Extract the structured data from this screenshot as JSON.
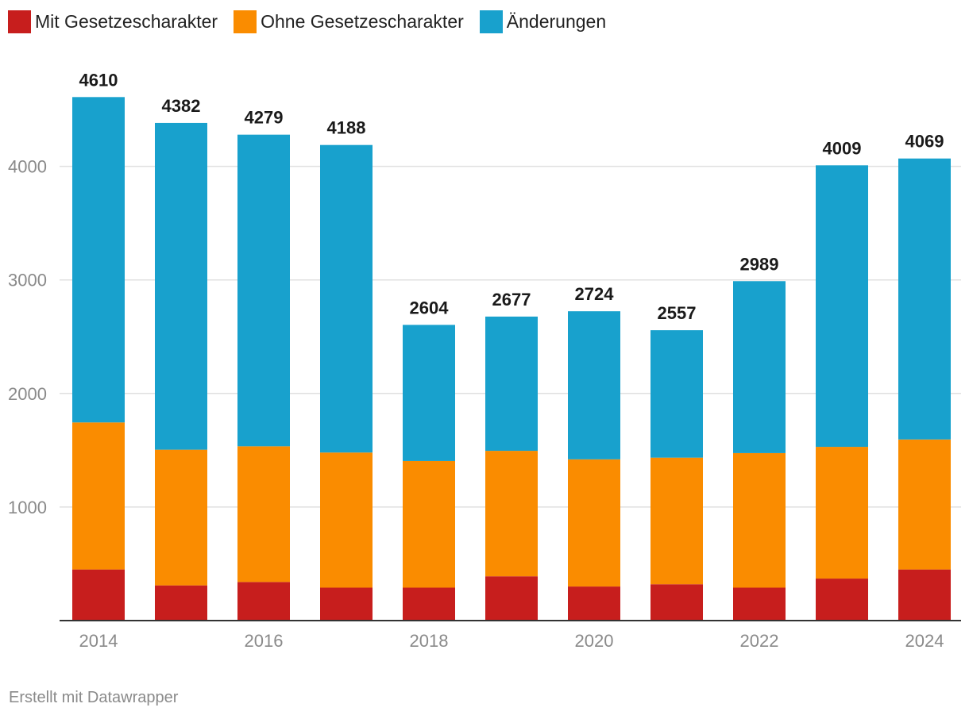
{
  "chart_data": {
    "type": "bar",
    "stacked": true,
    "categories": [
      "2014",
      "2015",
      "2016",
      "2017",
      "2018",
      "2019",
      "2020",
      "2021",
      "2022",
      "2023",
      "2024"
    ],
    "x_tick_labels": [
      "2014",
      "",
      "2016",
      "",
      "2018",
      "",
      "2020",
      "",
      "2022",
      "",
      "2024"
    ],
    "series": [
      {
        "name": "Mit Gesetzescharakter",
        "color": "#c71e1d",
        "values": [
          450,
          310,
          340,
          290,
          290,
          390,
          300,
          320,
          290,
          370,
          450
        ]
      },
      {
        "name": "Ohne Gesetzescharakter",
        "color": "#fa8c00",
        "values": [
          1295,
          1195,
          1195,
          1190,
          1115,
          1105,
          1120,
          1115,
          1185,
          1160,
          1145
        ]
      },
      {
        "name": "Änderungen",
        "color": "#18a1cd",
        "values": [
          2865,
          2877,
          2744,
          2708,
          1199,
          1182,
          1304,
          1122,
          1514,
          2479,
          2474
        ]
      }
    ],
    "totals": [
      4610,
      4382,
      4279,
      4188,
      2604,
      2677,
      2724,
      2557,
      2989,
      4009,
      4069
    ],
    "y_ticks": [
      1000,
      2000,
      3000,
      4000
    ],
    "ylim": [
      0,
      4800
    ],
    "grid": true,
    "legend_position": "top-left",
    "title": "",
    "xlabel": "",
    "ylabel": ""
  },
  "footer": {
    "credit": "Erstellt mit Datawrapper"
  },
  "colors": {
    "grid": "#e0e0e0",
    "axis": "#333333",
    "tick_text": "#8a8a8a",
    "label_text": "#1a1a1a"
  }
}
